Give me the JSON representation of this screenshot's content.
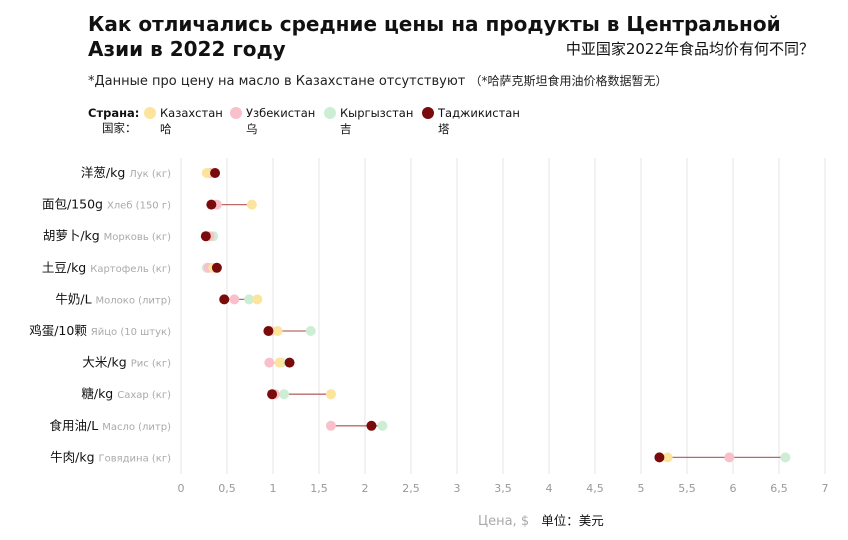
{
  "chart_data": {
    "type": "dot",
    "title": "Как отличались средние цены на продукты в Центральной Азии в 2022 году",
    "subtitle_zh": "中亚国家2022年食品均价有何不同？",
    "note": "*Данные про цену на масло в Казахстане отсутствуют",
    "note_zh": "（*哈萨克斯坦食用油价格数据暂无）",
    "legend_label": "Страна:",
    "legend_label_zh": "国家：",
    "xlabel": "Цена, $",
    "xlabel_zh": "单位：美元",
    "xlim": [
      0,
      7
    ],
    "xticks": [
      "0",
      "0,5",
      "1",
      "1,5",
      "2",
      "2,5",
      "3",
      "3,5",
      "4",
      "4,5",
      "5",
      "5,5",
      "6",
      "6,5",
      "7"
    ],
    "series": [
      {
        "name": "Казахстан",
        "name_zh": "哈",
        "color": "#fde49c"
      },
      {
        "name": "Узбекистан",
        "name_zh": "乌",
        "color": "#f9c0cb"
      },
      {
        "name": "Кыргызстан",
        "name_zh": "吉",
        "color": "#cdeed4"
      },
      {
        "name": "Таджикистан",
        "name_zh": "塔",
        "color": "#7a0b0b"
      }
    ],
    "categories": [
      {
        "zh": "洋葱/kg",
        "ru": "Лук (кг)",
        "values": [
          0.28,
          0.32,
          0.3,
          0.37
        ]
      },
      {
        "zh": "面包/150g",
        "ru": "Хлеб (150 г)",
        "values": [
          0.77,
          0.39,
          null,
          0.33
        ]
      },
      {
        "zh": "胡萝卜/kg",
        "ru": "Морковь (кг)",
        "values": [
          0.27,
          0.31,
          0.35,
          0.27
        ]
      },
      {
        "zh": "土豆/kg",
        "ru": "Картофель (кг)",
        "values": [
          0.35,
          0.3,
          0.28,
          0.39
        ]
      },
      {
        "zh": "牛奶/L",
        "ru": "Молоко (литр)",
        "values": [
          0.83,
          0.58,
          0.74,
          0.47
        ]
      },
      {
        "zh": "鸡蛋/10颗",
        "ru": "Яйцо (10 штук)",
        "values": [
          1.05,
          0.97,
          1.41,
          0.95
        ]
      },
      {
        "zh": "大米/kg",
        "ru": "Рис (кг)",
        "values": [
          1.07,
          0.96,
          1.09,
          1.18
        ]
      },
      {
        "zh": "糖/kg",
        "ru": "Сахар (кг)",
        "values": [
          1.63,
          1.02,
          1.12,
          0.99
        ]
      },
      {
        "zh": "食用油/L",
        "ru": "Масло (литр)",
        "values": [
          null,
          1.63,
          2.19,
          2.07
        ]
      },
      {
        "zh": "牛肉/kg",
        "ru": "Говядина (кг)",
        "values": [
          5.29,
          5.96,
          6.57,
          5.2
        ]
      }
    ]
  }
}
